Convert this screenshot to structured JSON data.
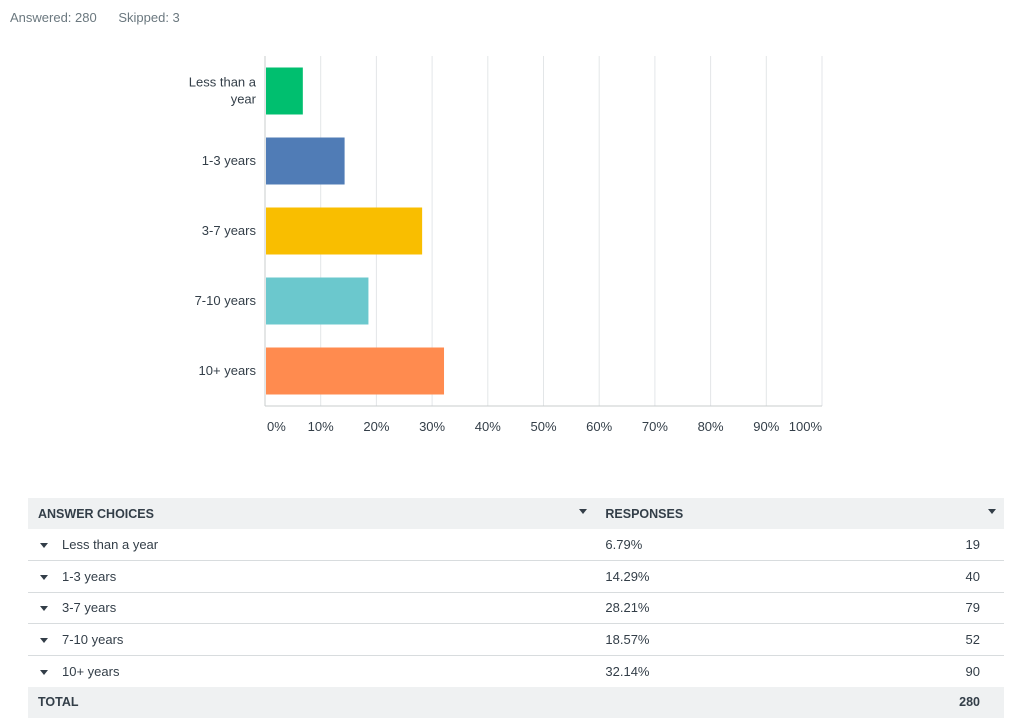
{
  "summary": {
    "answered": "Answered: 280",
    "skipped": "Skipped: 3"
  },
  "colors": {
    "bars": [
      "#00bf6f",
      "#507cb6",
      "#f9be00",
      "#6bc8cd",
      "#ff8b4f"
    ],
    "grid": "#e3e6e8",
    "axis": "#c8ccce",
    "text": "#333e48"
  },
  "chart_data": {
    "type": "bar",
    "orientation": "horizontal",
    "categories": [
      [
        "Less than a",
        "year"
      ],
      [
        "1-3 years"
      ],
      [
        "3-7 years"
      ],
      [
        "7-10 years"
      ],
      [
        "10+ years"
      ]
    ],
    "values": [
      6.79,
      14.29,
      28.21,
      18.57,
      32.14
    ],
    "xlim": [
      0,
      100
    ],
    "xticks": [
      "0%",
      "10%",
      "20%",
      "30%",
      "40%",
      "50%",
      "60%",
      "70%",
      "80%",
      "90%",
      "100%"
    ],
    "grid": true
  },
  "table": {
    "headers": {
      "choices": "ANSWER CHOICES",
      "responses": "RESPONSES"
    },
    "rows": [
      {
        "choice": "Less than a year",
        "percent": "6.79%",
        "count": "19"
      },
      {
        "choice": "1-3 years",
        "percent": "14.29%",
        "count": "40"
      },
      {
        "choice": "3-7 years",
        "percent": "28.21%",
        "count": "79"
      },
      {
        "choice": "7-10 years",
        "percent": "18.57%",
        "count": "52"
      },
      {
        "choice": "10+ years",
        "percent": "32.14%",
        "count": "90"
      }
    ],
    "total_label": "TOTAL",
    "total_value": "280"
  }
}
